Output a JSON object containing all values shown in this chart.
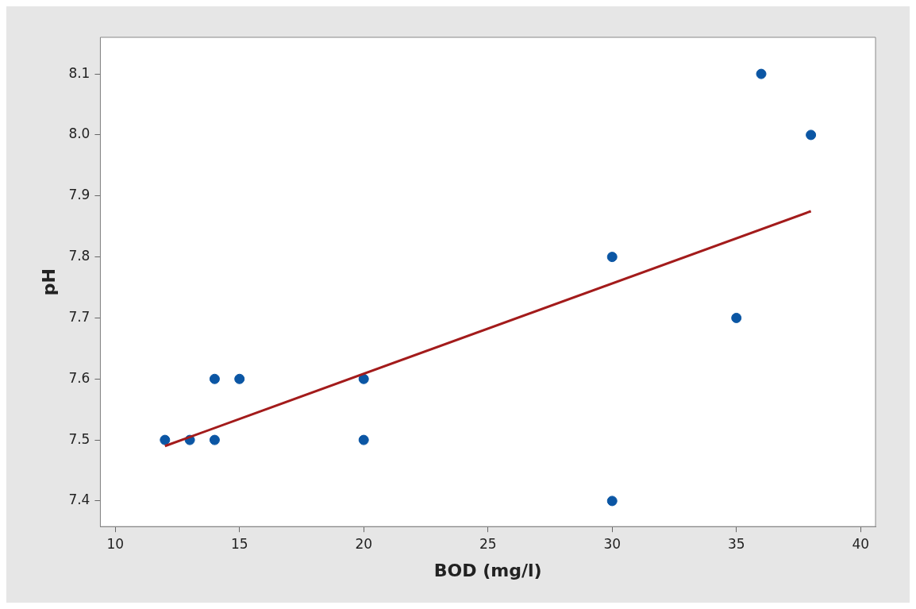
{
  "chart_data": {
    "type": "scatter",
    "xlabel": "BOD (mg/l)",
    "ylabel": "pH",
    "xlim": [
      9.4,
      40.6
    ],
    "xticks": [
      10,
      15,
      20,
      25,
      30,
      35,
      40
    ],
    "ylim": [
      7.358,
      8.16
    ],
    "yticks": [
      {
        "value": 7.4,
        "label": "7.4"
      },
      {
        "value": 7.5,
        "label": "7.5"
      },
      {
        "value": 7.6,
        "label": "7.6"
      },
      {
        "value": 7.7,
        "label": "7.7"
      },
      {
        "value": 7.8,
        "label": "7.8"
      },
      {
        "value": 7.9,
        "label": "7.9"
      },
      {
        "value": 8.0,
        "label": "8.0"
      },
      {
        "value": 8.1,
        "label": "8.1"
      }
    ],
    "grid": false,
    "legend": false,
    "series": [
      {
        "marker": "circle",
        "color": "#0b56a4",
        "x": [
          12,
          13,
          14,
          14,
          15,
          20,
          20,
          30,
          30,
          35,
          36,
          38
        ],
        "values": [
          7.5,
          7.5,
          7.6,
          7.5,
          7.6,
          7.6,
          7.5,
          7.8,
          7.4,
          7.7,
          8.1,
          8.0
        ]
      },
      {
        "type": "line",
        "color": "#a31b1b",
        "x": [
          12,
          38
        ],
        "values": [
          7.49,
          7.875
        ]
      }
    ]
  }
}
